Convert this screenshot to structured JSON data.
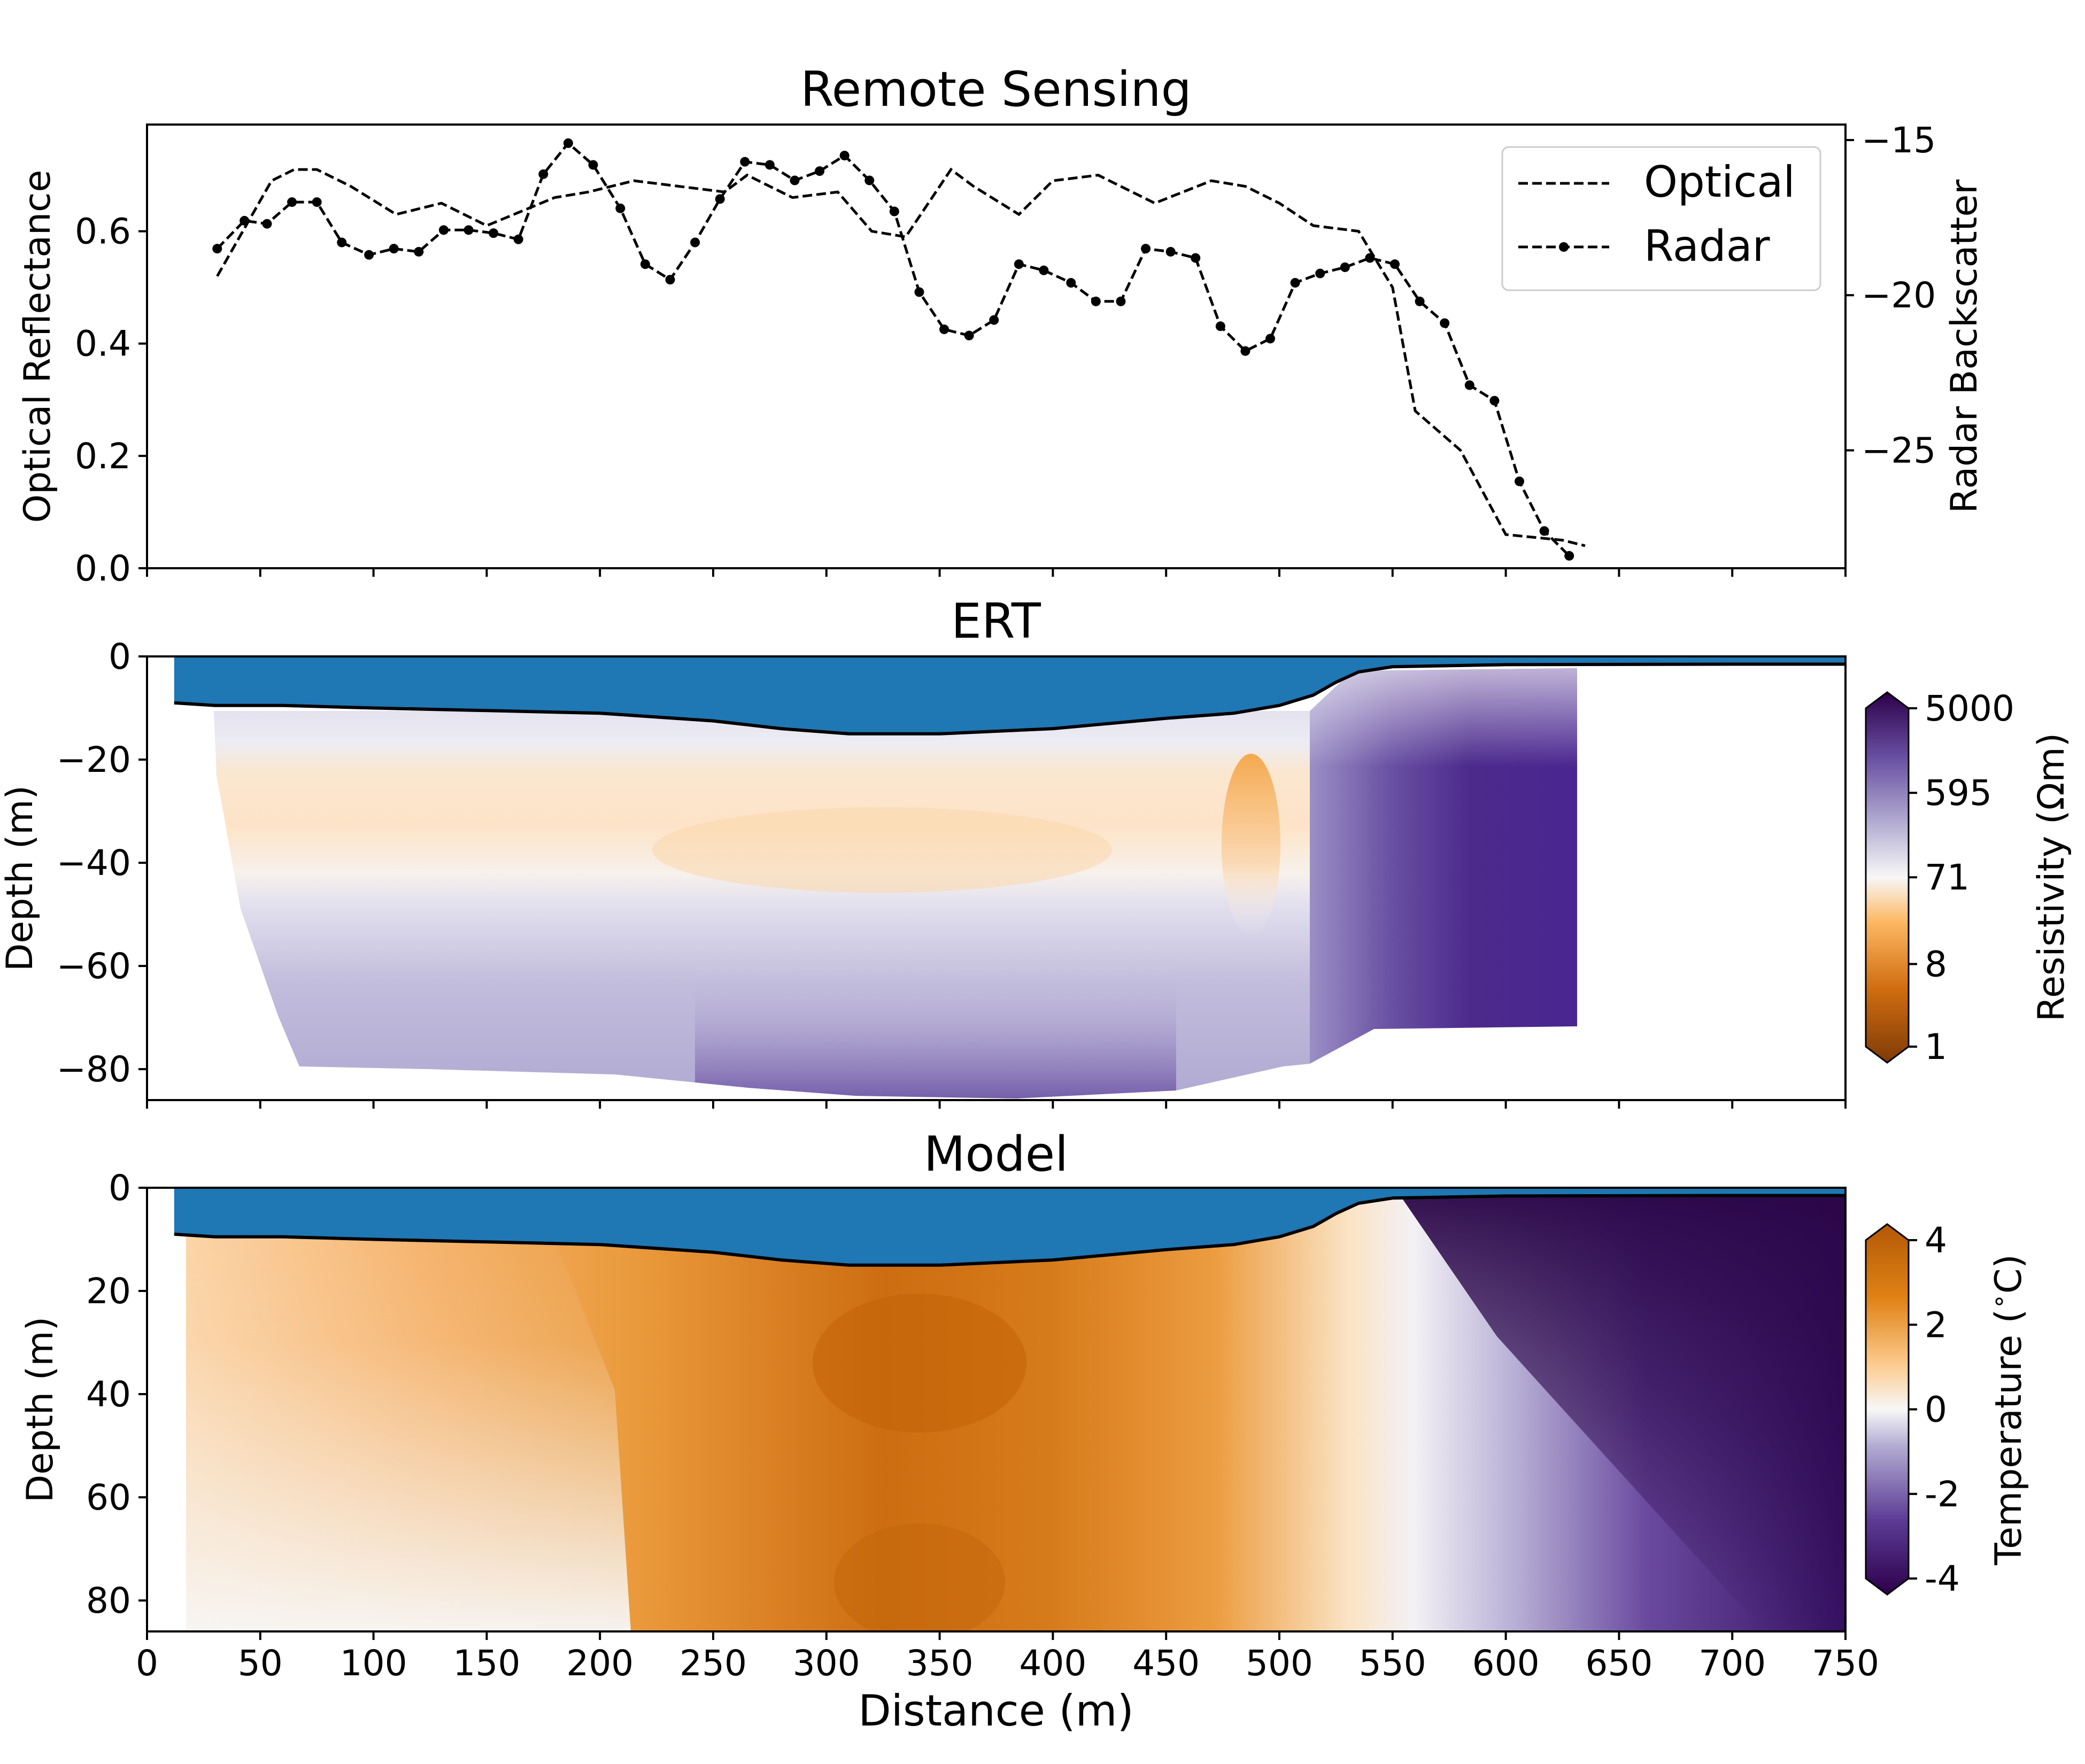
{
  "chart_data": [
    {
      "type": "line",
      "title": "Remote Sensing",
      "xlim": [
        0,
        750
      ],
      "xticks": [
        0,
        50,
        100,
        150,
        200,
        250,
        300,
        350,
        400,
        450,
        500,
        550,
        600,
        650,
        700,
        750
      ],
      "ylabel": "Optical Reflectance",
      "ylim": [
        0,
        0.79
      ],
      "yticks": [
        0.0,
        0.2,
        0.4,
        0.6
      ],
      "ytick_labels": [
        "0.0",
        "0.2",
        "0.4",
        "0.6"
      ],
      "y2label": "Radar Backscatter",
      "y2lim": [
        -28.8,
        -14.5
      ],
      "y2ticks": [
        -25,
        -20,
        -15
      ],
      "y2tick_labels": [
        "−25",
        "−20",
        "−15"
      ],
      "legend": {
        "placement": "top-right"
      },
      "series": [
        {
          "name": "Optical",
          "axis": "left",
          "style": "dashed",
          "x": [
            31,
            55,
            65,
            75,
            90,
            110,
            130,
            150,
            180,
            195,
            215,
            235,
            255,
            265,
            285,
            305,
            320,
            335,
            355,
            365,
            385,
            400,
            420,
            445,
            470,
            485,
            500,
            515,
            535,
            550,
            560,
            580,
            600,
            625,
            635
          ],
          "y": [
            0.52,
            0.69,
            0.71,
            0.71,
            0.68,
            0.63,
            0.65,
            0.61,
            0.66,
            0.67,
            0.69,
            0.68,
            0.67,
            0.7,
            0.66,
            0.67,
            0.6,
            0.59,
            0.71,
            0.68,
            0.63,
            0.69,
            0.7,
            0.65,
            0.69,
            0.68,
            0.65,
            0.61,
            0.6,
            0.5,
            0.28,
            0.21,
            0.06,
            0.05,
            0.04
          ]
        },
        {
          "name": "Radar",
          "axis": "right",
          "style": "dashed-dotted-markers",
          "x": [
            31,
            43,
            53,
            64,
            75,
            86,
            98,
            109,
            120,
            131,
            142,
            153,
            164,
            175,
            186,
            197,
            209,
            220,
            231,
            242,
            253,
            264,
            275,
            286,
            297,
            308,
            319,
            330,
            341,
            352,
            363,
            374,
            385,
            396,
            408,
            419,
            430,
            441,
            452,
            463,
            474,
            485,
            496,
            507,
            518,
            529,
            540,
            551,
            562,
            573,
            584,
            595,
            606,
            617,
            628
          ],
          "y": [
            -18.5,
            -17.6,
            -17.7,
            -17.0,
            -17.0,
            -18.3,
            -18.7,
            -18.5,
            -18.6,
            -17.9,
            -17.9,
            -18.0,
            -18.2,
            -16.1,
            -15.1,
            -15.8,
            -17.2,
            -19.0,
            -19.5,
            -18.3,
            -16.9,
            -15.7,
            -15.8,
            -16.3,
            -16.0,
            -15.5,
            -16.3,
            -17.3,
            -19.9,
            -21.1,
            -21.3,
            -20.8,
            -19.0,
            -19.2,
            -19.6,
            -20.2,
            -20.2,
            -18.5,
            -18.6,
            -18.8,
            -21.0,
            -21.8,
            -21.4,
            -19.6,
            -19.3,
            -19.1,
            -18.8,
            -19.0,
            -20.2,
            -20.9,
            -22.9,
            -23.4,
            -26.0,
            -27.6,
            -28.4
          ]
        }
      ]
    },
    {
      "type": "heatmap",
      "title": "ERT",
      "xlim": [
        0,
        750
      ],
      "xticks": [
        0,
        50,
        100,
        150,
        200,
        250,
        300,
        350,
        400,
        450,
        500,
        550,
        600,
        650,
        700,
        750
      ],
      "ylabel": "Depth (m)",
      "ylim": [
        -86,
        0
      ],
      "yticks": [
        0,
        -20,
        -40,
        -60,
        -80
      ],
      "ytick_labels": [
        "0",
        "−20",
        "−40",
        "−60",
        "−80"
      ],
      "colorbar": {
        "label": "Resistivity (Ωm)",
        "scale": "log",
        "range": [
          1,
          5000
        ],
        "ticks": [
          1,
          8,
          71,
          595,
          5000
        ],
        "tick_labels": [
          "1",
          "8",
          "71",
          "595",
          "5000"
        ],
        "colormap": "PuOr",
        "low_color": "#7f3b08",
        "mid_color": "#f7f7f7",
        "high_color": "#2d004b"
      },
      "water_color": "#1f77b4"
    },
    {
      "type": "heatmap",
      "title": "Model",
      "xlabel": "Distance (m)",
      "xlim": [
        0,
        750
      ],
      "xticks": [
        0,
        50,
        100,
        150,
        200,
        250,
        300,
        350,
        400,
        450,
        500,
        550,
        600,
        650,
        700,
        750
      ],
      "ylabel": "Depth (m)",
      "ylim": [
        86,
        0
      ],
      "yticks": [
        0,
        20,
        40,
        60,
        80
      ],
      "ytick_labels": [
        "0",
        "20",
        "40",
        "60",
        "80"
      ],
      "colorbar": {
        "label": "Temperature ($^\\circ$C)",
        "range": [
          -4,
          4
        ],
        "ticks": [
          -4,
          -2,
          0,
          2,
          4
        ],
        "tick_labels": [
          "-4",
          "-2",
          "0",
          "2",
          "4"
        ],
        "colormap": "PuOr",
        "low_color": "#2d004b",
        "mid_color": "#f7f7f7",
        "high_color": "#b35806"
      },
      "water_color": "#1f77b4"
    }
  ],
  "colors": {
    "water": "#1f77b4",
    "line": "#000000",
    "orange_strong": "#c8660c",
    "orange_mid": "#e89133",
    "orange_light": "#f9c98f",
    "neutral": "#f7f7f7",
    "purple_light": "#bcb6da",
    "purple_mid": "#6d4fa0",
    "purple_dark": "#2d0a4e"
  },
  "bathymetry": {
    "x": [
      12,
      30,
      60,
      100,
      150,
      200,
      250,
      280,
      310,
      350,
      400,
      450,
      480,
      500,
      515,
      525,
      535,
      550,
      600,
      700,
      750
    ],
    "depth": [
      9,
      9.5,
      9.5,
      10,
      10.5,
      11,
      12.5,
      14,
      15,
      15,
      14,
      12,
      11,
      9.5,
      7.5,
      5,
      3,
      2,
      1.6,
      1.5,
      1.5
    ]
  }
}
